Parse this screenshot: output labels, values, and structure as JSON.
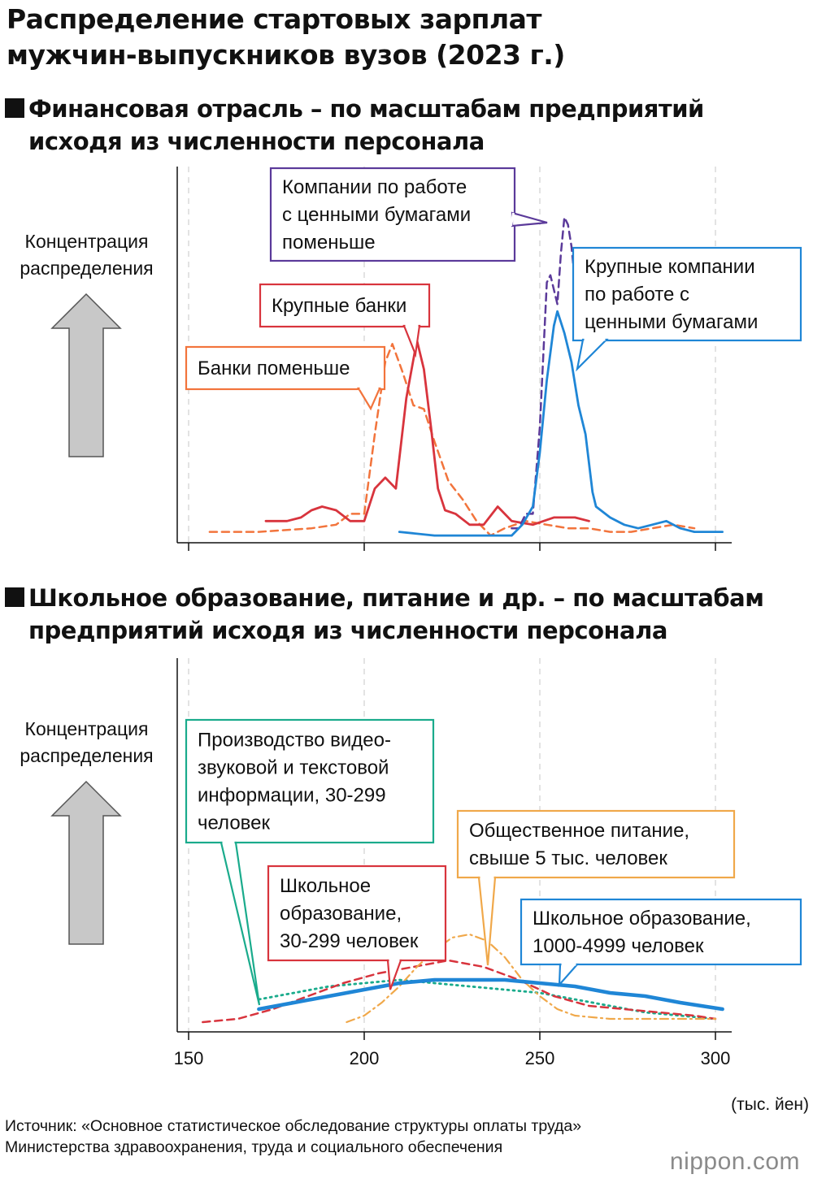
{
  "title": {
    "line1": "Распределение стартовых зарплат",
    "line2": "мужчин-выпускников вузов (2023 г.)"
  },
  "y_axis_label": {
    "line1": "Концентрация",
    "line2": "распределения"
  },
  "x_axis": {
    "ticks": [
      "150",
      "200",
      "250",
      "300"
    ],
    "unit": "(тыс. йен)"
  },
  "source": "Источник: «Основное статистическое обследование структуры оплаты труда» Министерства здравоохранения, труда и социального обеспечения",
  "logo": "nippon.com",
  "colors": {
    "red": "#d8343d",
    "orange": "#f2743c",
    "purple": "#5b3a9a",
    "blue": "#1f86d6",
    "teal": "#1aab8c",
    "yellow": "#f0a84a",
    "arrow_fill": "#c8c8c8",
    "grid": "#d0d0d0"
  },
  "chart_data": [
    {
      "type": "line",
      "title": {
        "line1": "Финансовая отрасль – по масштабам предприятий",
        "line2": "исходя из численности персонала"
      },
      "xlim": [
        150,
        300
      ],
      "y_scale": "relative density (no numeric scale shown)",
      "series": [
        {
          "name": {
            "line1": "Банки поменьше"
          },
          "color": "#f2743c",
          "style": "dashed",
          "x": [
            156,
            170,
            185,
            192,
            196,
            200,
            203,
            206,
            208,
            211,
            214,
            217,
            220,
            224,
            228,
            232,
            236,
            240,
            246,
            252,
            258,
            264,
            270,
            276,
            282,
            288,
            294
          ],
          "y": [
            0.03,
            0.03,
            0.04,
            0.05,
            0.08,
            0.08,
            0.3,
            0.5,
            0.55,
            0.47,
            0.38,
            0.37,
            0.28,
            0.17,
            0.12,
            0.06,
            0.02,
            0.04,
            0.06,
            0.05,
            0.04,
            0.04,
            0.03,
            0.03,
            0.04,
            0.05,
            0.04
          ]
        },
        {
          "name": {
            "line1": "Крупные банки"
          },
          "color": "#d8343d",
          "style": "solid",
          "x": [
            172,
            178,
            182,
            185,
            188,
            192,
            196,
            200,
            203,
            206,
            209,
            212,
            215,
            217,
            219,
            221,
            223,
            226,
            230,
            234,
            238,
            242,
            248,
            254,
            260,
            264
          ],
          "y": [
            0.06,
            0.06,
            0.07,
            0.09,
            0.1,
            0.09,
            0.06,
            0.06,
            0.15,
            0.18,
            0.15,
            0.4,
            0.56,
            0.48,
            0.32,
            0.15,
            0.09,
            0.08,
            0.05,
            0.05,
            0.1,
            0.06,
            0.05,
            0.07,
            0.07,
            0.06
          ]
        },
        {
          "name": {
            "line1": "Компании по работе",
            "line2": "с ценными бумагами",
            "line3": "поменьше"
          },
          "color": "#5b3a9a",
          "style": "dashed",
          "x": [
            242,
            244,
            246,
            248,
            250,
            252,
            253,
            254,
            255,
            256,
            257,
            258,
            259,
            260
          ],
          "y": [
            0.04,
            0.04,
            0.08,
            0.08,
            0.32,
            0.72,
            0.74,
            0.7,
            0.66,
            0.8,
            0.9,
            0.88,
            0.82,
            0.72
          ]
        },
        {
          "name": {
            "line1": "Крупные компании",
            "line2": "по работе с",
            "line3": "ценными бумагами"
          },
          "color": "#1f86d6",
          "style": "solid",
          "x": [
            210,
            220,
            232,
            238,
            242,
            245,
            248,
            250,
            252,
            254,
            255,
            257,
            259,
            261,
            263,
            265,
            266,
            270,
            274,
            278,
            282,
            286,
            290,
            294,
            298,
            302
          ],
          "y": [
            0.03,
            0.02,
            0.02,
            0.02,
            0.02,
            0.05,
            0.1,
            0.25,
            0.45,
            0.6,
            0.64,
            0.58,
            0.5,
            0.38,
            0.3,
            0.14,
            0.1,
            0.07,
            0.05,
            0.04,
            0.05,
            0.06,
            0.04,
            0.03,
            0.03,
            0.03
          ]
        }
      ]
    },
    {
      "type": "line",
      "title": {
        "line1": "Школьное образование, питание и др. – по масштабам",
        "line2": "предприятий исходя из численности персонала"
      },
      "xlim": [
        150,
        300
      ],
      "y_scale": "relative density (no numeric scale shown)",
      "series": [
        {
          "name": {
            "line1": "Производство видео-",
            "line2": "звуковой и текстовой",
            "line3": "информации, 30-299",
            "line4": "человек"
          },
          "color": "#1aab8c",
          "style": "dotted",
          "x": [
            170,
            180,
            190,
            200,
            210,
            220,
            230,
            240,
            250,
            260,
            270,
            280,
            290,
            300
          ],
          "y": [
            0.1,
            0.12,
            0.14,
            0.15,
            0.16,
            0.15,
            0.14,
            0.13,
            0.12,
            0.1,
            0.08,
            0.06,
            0.05,
            0.04
          ]
        },
        {
          "name": {
            "line1": "Школьное",
            "line2": "образование,",
            "line3": "30-299 человек"
          },
          "color": "#d8343d",
          "style": "dashed",
          "x": [
            154,
            164,
            174,
            184,
            194,
            204,
            214,
            224,
            234,
            244,
            254,
            264,
            274,
            284,
            294,
            300
          ],
          "y": [
            0.03,
            0.04,
            0.07,
            0.11,
            0.15,
            0.18,
            0.2,
            0.22,
            0.2,
            0.16,
            0.11,
            0.08,
            0.07,
            0.06,
            0.05,
            0.04
          ]
        },
        {
          "name": {
            "line1": "Общественное питание,",
            "line2": "свыше 5 тыс. человек"
          },
          "color": "#f0a84a",
          "style": "dashdot",
          "x": [
            195,
            200,
            205,
            210,
            215,
            220,
            225,
            230,
            235,
            240,
            245,
            250,
            255,
            260,
            270,
            280,
            290,
            300
          ],
          "y": [
            0.03,
            0.05,
            0.09,
            0.14,
            0.2,
            0.25,
            0.29,
            0.3,
            0.28,
            0.23,
            0.16,
            0.11,
            0.07,
            0.05,
            0.04,
            0.04,
            0.04,
            0.04
          ]
        },
        {
          "name": {
            "line1": "Школьное образование,",
            "line2": "1000-4999 человек"
          },
          "color": "#1f86d6",
          "style": "solid-thick",
          "x": [
            170,
            180,
            190,
            200,
            210,
            220,
            230,
            240,
            250,
            260,
            270,
            280,
            290,
            302
          ],
          "y": [
            0.07,
            0.09,
            0.11,
            0.13,
            0.15,
            0.16,
            0.16,
            0.16,
            0.15,
            0.14,
            0.12,
            0.11,
            0.09,
            0.07
          ]
        }
      ]
    }
  ]
}
